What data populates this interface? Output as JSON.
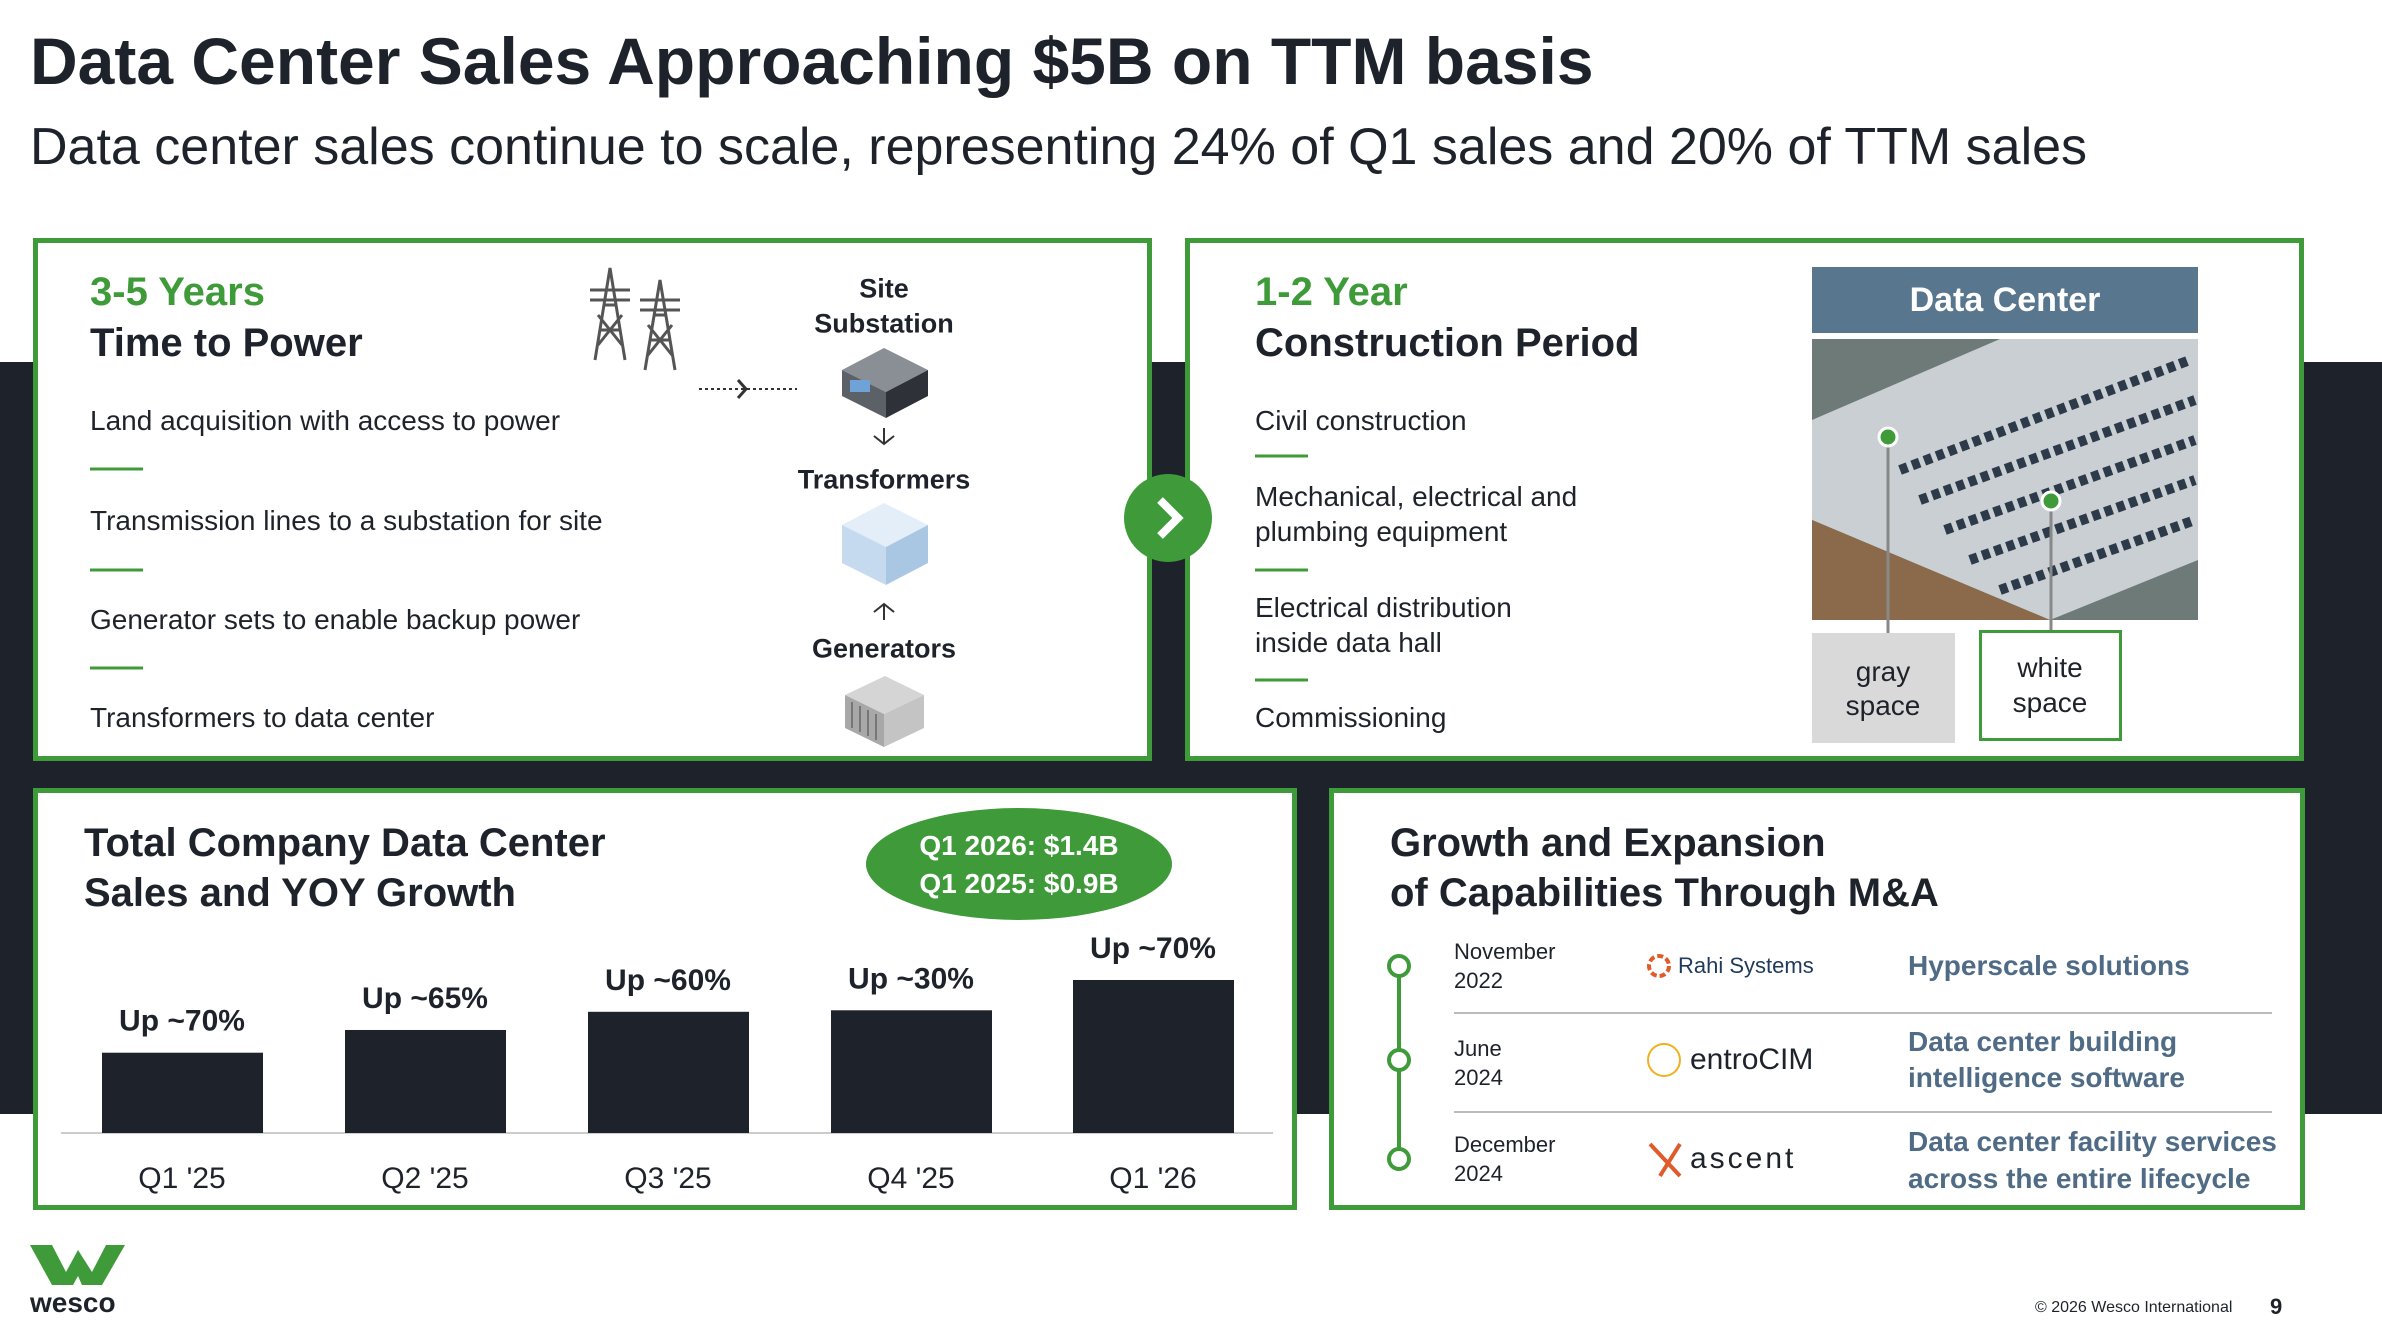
{
  "title": "Data Center Sales Approaching $5B on TTM basis",
  "subtitle": "Data center sales continue to scale, representing 24% of Q1 sales and 20% of TTM sales",
  "power_panel": {
    "heading": "3-5 Years",
    "subheading": "Time to Power",
    "items": [
      "Land acquisition with access to power",
      "Transmission lines to a substation for site",
      "Generator sets to enable backup power",
      "Transformers to data center"
    ],
    "flow": [
      [
        "Site",
        "Substation"
      ],
      [
        "Transformers"
      ],
      [
        "Generators"
      ]
    ]
  },
  "construction_panel": {
    "heading": "1-2 Year",
    "subheading": "Construction Period",
    "items": [
      [
        "Civil construction"
      ],
      [
        "Mechanical, electrical and",
        "plumbing equipment"
      ],
      [
        "Electrical distribution",
        "inside data hall"
      ],
      [
        "Commissioning"
      ]
    ],
    "image_title": "Data Center",
    "labels": [
      [
        "gray",
        "space"
      ],
      [
        "white",
        "space"
      ]
    ]
  },
  "chart_data": {
    "type": "bar",
    "title": [
      "Total Company Data Center",
      "Sales and YOY Growth"
    ],
    "callout": [
      "Q1 2026: $1.4B",
      "Q1 2025: $0.9B"
    ],
    "categories": [
      "Q1 '25",
      "Q2 '25",
      "Q3 '25",
      "Q4 '25",
      "Q1 '26"
    ],
    "values": [
      53,
      68,
      80,
      81,
      101
    ],
    "growth_labels": [
      "Up ~70%",
      "Up ~65%",
      "Up ~60%",
      "Up ~30%",
      "Up ~70%"
    ],
    "color": "#1e232b"
  },
  "ma_panel": {
    "title": [
      "Growth and Expansion",
      "of Capabilities Through M&A"
    ],
    "deals": [
      {
        "date": [
          "November",
          "2022"
        ],
        "company": "Rahi Systems",
        "description": [
          "Hyperscale solutions"
        ]
      },
      {
        "date": [
          "June",
          "2024"
        ],
        "company": "entroCIM",
        "description": [
          "Data center building",
          "intelligence software"
        ]
      },
      {
        "date": [
          "December",
          "2024"
        ],
        "company": "ascent",
        "description": [
          "Data center facility services",
          "across the entire lifecycle"
        ]
      }
    ]
  },
  "footer": {
    "logo": "wesco",
    "copyright": "© 2026 Wesco International",
    "page": "9"
  }
}
